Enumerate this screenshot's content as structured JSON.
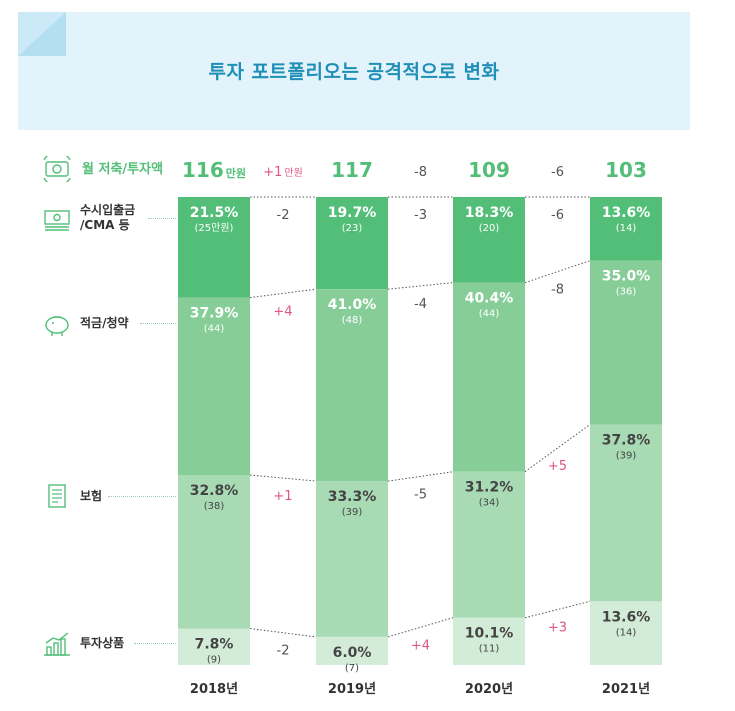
{
  "title": "투자 포트폴리오는 공격적으로 변화",
  "monthly": {
    "label": "월 저축/투자액",
    "icon": "money-cycle-icon",
    "values": [
      {
        "value": "116",
        "unit": "만원"
      },
      {
        "value": "117",
        "unit": ""
      },
      {
        "value": "109",
        "unit": ""
      },
      {
        "value": "103",
        "unit": ""
      }
    ],
    "changes": [
      {
        "value": "+1",
        "unit": "만원"
      },
      {
        "value": "-8",
        "unit": ""
      },
      {
        "value": "-6",
        "unit": ""
      }
    ]
  },
  "categories": [
    {
      "label": "수시입출금\n/CMA 등",
      "icon": "bill-icon"
    },
    {
      "label": "적금/청약",
      "icon": "piggy-bank-icon"
    },
    {
      "label": "보험",
      "icon": "document-icon"
    },
    {
      "label": "투자상품",
      "icon": "bar-growth-icon"
    }
  ],
  "chart_data": {
    "type": "bar",
    "stacked": true,
    "categories": [
      "2018년",
      "2019년",
      "2020년",
      "2021년"
    ],
    "series": [
      {
        "name": "수시입출금/CMA 등",
        "values": [
          21.5,
          19.7,
          18.3,
          13.6
        ],
        "labels": [
          "21.5%",
          "19.7%",
          "18.3%",
          "13.6%"
        ],
        "sublabels": [
          "(25만원)",
          "(23)",
          "(20)",
          "(14)"
        ]
      },
      {
        "name": "적금/청약",
        "values": [
          37.9,
          41.0,
          40.4,
          35.0
        ],
        "labels": [
          "37.9%",
          "41.0%",
          "40.4%",
          "35.0%"
        ],
        "sublabels": [
          "(44)",
          "(48)",
          "(44)",
          "(36)"
        ]
      },
      {
        "name": "보험",
        "values": [
          32.8,
          33.3,
          31.2,
          37.8
        ],
        "labels": [
          "32.8%",
          "33.3%",
          "31.2%",
          "37.8%"
        ],
        "sublabels": [
          "(38)",
          "(39)",
          "(34)",
          "(39)"
        ]
      },
      {
        "name": "투자상품",
        "values": [
          7.8,
          6.0,
          10.1,
          13.6
        ],
        "labels": [
          "7.8%",
          "6.0%",
          "10.1%",
          "13.6%"
        ],
        "sublabels": [
          "(9)",
          "(7)",
          "(11)",
          "(14)"
        ]
      }
    ],
    "changes": [
      [
        "-2",
        "-3",
        "-6"
      ],
      [
        "+4",
        "-4",
        "-8"
      ],
      [
        "+1",
        "-5",
        "+5"
      ],
      [
        "-2",
        "+4",
        "+3"
      ]
    ],
    "colors": [
      "#52be78",
      "#86cd98",
      "#a8dab4",
      "#d2ecd8"
    ],
    "label_colors": [
      "#ffffff",
      "#ffffff",
      "#444444",
      "#444444"
    ],
    "positive_color": "#e0558a",
    "negative_color": "#555555",
    "value_color": "#52be78"
  }
}
